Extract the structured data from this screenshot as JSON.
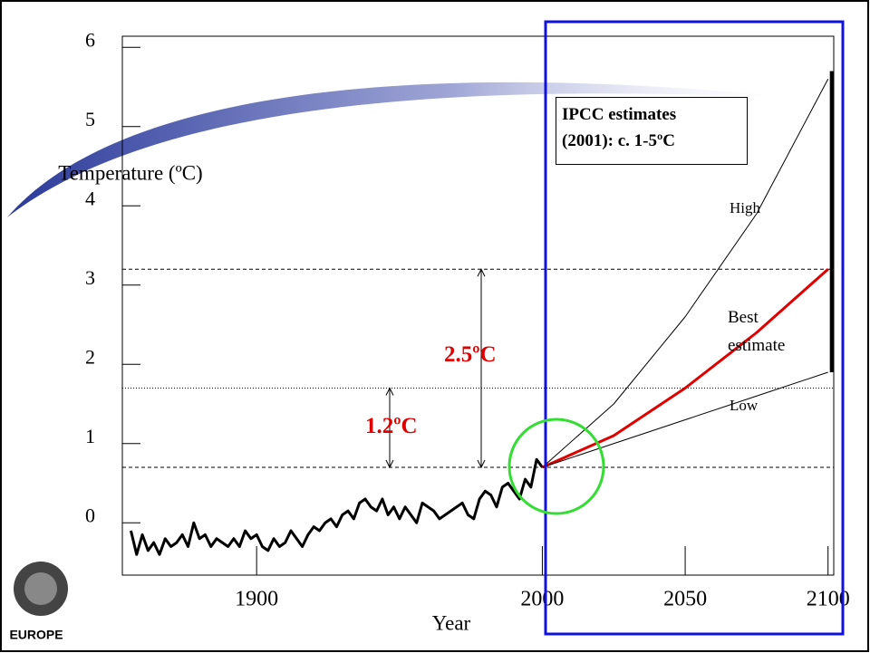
{
  "chart_data": {
    "type": "line",
    "x_label": "Year",
    "y_label": "Temperature (ºC)",
    "xlim": [
      1853,
      2102
    ],
    "xticks": [
      1900,
      2000,
      2050,
      2100
    ],
    "ylim": [
      -0.66,
      6.14
    ],
    "yticks": [
      0,
      1,
      2,
      3,
      4,
      5,
      6
    ],
    "reference_lines": [
      0.7,
      1.7,
      3.2
    ],
    "range_bar": [
      1.9,
      5.7
    ],
    "series": [
      {
        "color": "#000000",
        "x": [
          1856,
          1858,
          1860,
          1862,
          1864,
          1866,
          1868,
          1870,
          1872,
          1874,
          1876,
          1878,
          1880,
          1882,
          1884,
          1886,
          1888,
          1890,
          1892,
          1894,
          1896,
          1898,
          1900,
          1902,
          1904,
          1906,
          1908,
          1910,
          1912,
          1914,
          1916,
          1918,
          1920,
          1922,
          1924,
          1926,
          1928,
          1930,
          1932,
          1934,
          1936,
          1938,
          1940,
          1942,
          1944,
          1946,
          1948,
          1950,
          1952,
          1954,
          1956,
          1958,
          1960,
          1962,
          1964,
          1966,
          1968,
          1970,
          1972,
          1974,
          1976,
          1978,
          1980,
          1982,
          1984,
          1986,
          1988,
          1990,
          1992,
          1994,
          1996,
          1998,
          2000
        ],
        "values": [
          -0.1,
          -0.4,
          -0.15,
          -0.35,
          -0.25,
          -0.4,
          -0.2,
          -0.3,
          -0.25,
          -0.15,
          -0.3,
          0.0,
          -0.2,
          -0.15,
          -0.3,
          -0.2,
          -0.25,
          -0.3,
          -0.2,
          -0.3,
          -0.1,
          -0.2,
          -0.15,
          -0.3,
          -0.35,
          -0.2,
          -0.3,
          -0.25,
          -0.1,
          -0.2,
          -0.3,
          -0.15,
          -0.05,
          -0.1,
          0.0,
          0.05,
          -0.05,
          0.1,
          0.15,
          0.05,
          0.25,
          0.3,
          0.2,
          0.15,
          0.3,
          0.1,
          0.2,
          0.05,
          0.2,
          0.1,
          0.0,
          0.25,
          0.2,
          0.15,
          0.05,
          0.1,
          0.15,
          0.2,
          0.25,
          0.1,
          0.05,
          0.3,
          0.4,
          0.35,
          0.2,
          0.45,
          0.5,
          0.4,
          0.3,
          0.55,
          0.45,
          0.8,
          0.7
        ]
      },
      {
        "name": "High",
        "color": "#000000",
        "x": [
          2000,
          2025,
          2050,
          2075,
          2100
        ],
        "values": [
          0.7,
          1.5,
          2.6,
          3.9,
          5.6
        ]
      },
      {
        "name": "Best estimate",
        "color": "#e00000",
        "x": [
          2000,
          2025,
          2050,
          2075,
          2100
        ],
        "values": [
          0.7,
          1.1,
          1.7,
          2.4,
          3.2
        ]
      },
      {
        "name": "Low",
        "color": "#000000",
        "x": [
          2000,
          2025,
          2050,
          2075,
          2100
        ],
        "values": [
          0.7,
          1.0,
          1.3,
          1.6,
          1.9
        ]
      }
    ]
  },
  "ipcc_box": [
    "IPCC estimates",
    "(2001): c. 1-5ºC"
  ],
  "warming_labels": [
    "2.5ºC",
    "1.2ºC"
  ],
  "logo_text": "EUROPE"
}
